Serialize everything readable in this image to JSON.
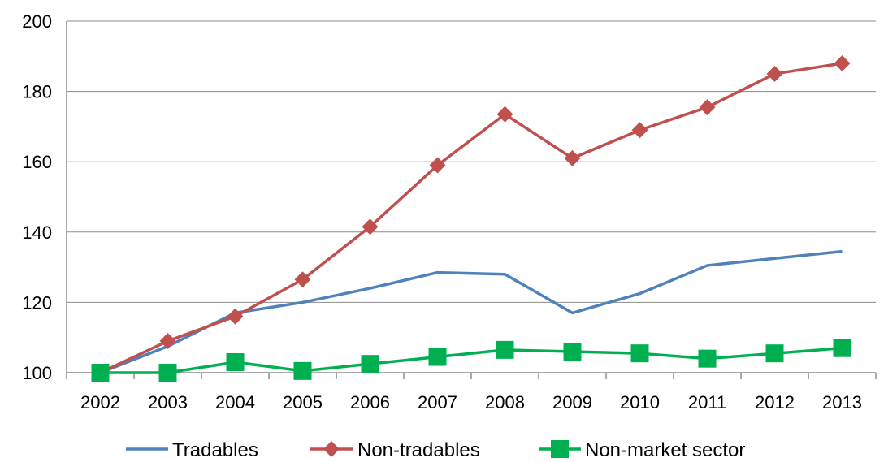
{
  "chart_data": {
    "type": "line",
    "title": "",
    "xlabel": "",
    "ylabel": "",
    "categories": [
      "2002",
      "2003",
      "2004",
      "2005",
      "2006",
      "2007",
      "2008",
      "2009",
      "2010",
      "2011",
      "2012",
      "2013"
    ],
    "ylim": [
      100,
      200
    ],
    "yticks": [
      100,
      120,
      140,
      160,
      180,
      200
    ],
    "grid": "horizontal",
    "legend": "bottom",
    "series": [
      {
        "name": "Tradables",
        "color": "#4F81BD",
        "marker": "none",
        "values": [
          100,
          107.5,
          117,
          120,
          124,
          128.5,
          128,
          117,
          122.5,
          130.5,
          132.5,
          134.5
        ]
      },
      {
        "name": "Non-tradables",
        "color": "#C0504D",
        "marker": "diamond",
        "values": [
          100,
          109,
          116,
          126.5,
          141.5,
          159,
          173.5,
          161,
          169,
          175.5,
          185,
          188
        ]
      },
      {
        "name": "Non-market sector",
        "color": "#00B050",
        "marker": "square",
        "values": [
          100,
          100,
          103,
          100.5,
          102.5,
          104.5,
          106.5,
          106,
          105.5,
          104,
          105.5,
          107
        ]
      }
    ]
  }
}
